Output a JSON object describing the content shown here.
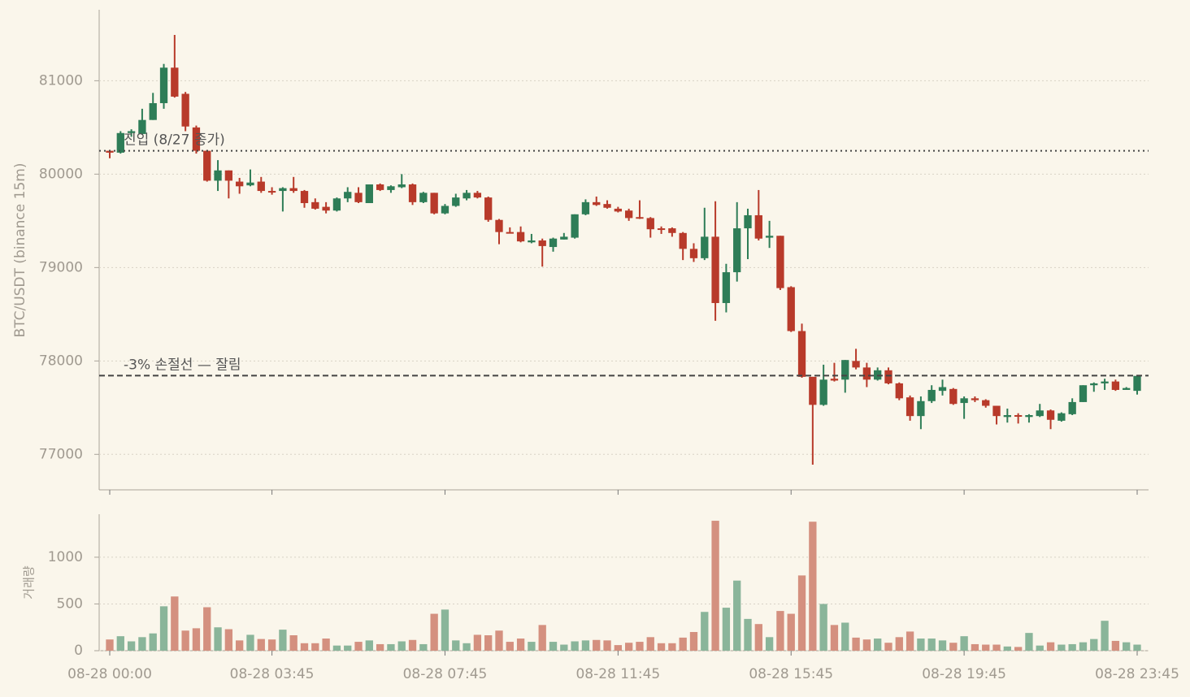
{
  "chart_data": [
    {
      "type": "candlestick",
      "ylabel": "BTC/USDT (binance 15m)",
      "up_color": "#2e7d57",
      "down_color": "#b83a2a",
      "grid": true,
      "ylim": [
        76620,
        81760
      ],
      "yticks": [
        77000,
        78000,
        79000,
        80000,
        81000
      ],
      "open": [
        80250,
        80230,
        80440,
        80430,
        80580,
        80760,
        81140,
        80860,
        80500,
        80250,
        79930,
        80040,
        79920,
        79880,
        79920,
        79820,
        79820,
        79850,
        79820,
        79700,
        79650,
        79610,
        79740,
        79800,
        79690,
        79890,
        79830,
        79860,
        79890,
        79700,
        79800,
        79580,
        79660,
        79740,
        79800,
        79750,
        79510,
        79380,
        79380,
        79270,
        79290,
        79220,
        79300,
        79320,
        79570,
        79700,
        79680,
        79630,
        79610,
        79540,
        79530,
        79420,
        79420,
        79370,
        79200,
        79100,
        79330,
        78620,
        78950,
        79420,
        79560,
        79320,
        79340,
        78790,
        78320,
        77830,
        77530,
        77810,
        77800,
        78000,
        77930,
        77800,
        77900,
        77760,
        77610,
        77410,
        77570,
        77680,
        77700,
        77550,
        77600,
        77580,
        77520,
        77400,
        77420,
        77400,
        77410,
        77470,
        77360,
        77430,
        77560,
        77740,
        77760,
        77780,
        77690,
        77680
      ],
      "high": [
        80260,
        80460,
        80480,
        80700,
        80870,
        81180,
        81490,
        80880,
        80520,
        80260,
        80150,
        80040,
        79960,
        80050,
        79970,
        79860,
        79860,
        79970,
        79830,
        79740,
        79700,
        79750,
        79860,
        79860,
        79890,
        79900,
        79880,
        80000,
        79900,
        79810,
        79800,
        79680,
        79790,
        79830,
        79820,
        79760,
        79520,
        79430,
        79440,
        79360,
        79310,
        79320,
        79370,
        79570,
        79730,
        79760,
        79720,
        79650,
        79630,
        79720,
        79540,
        79440,
        79430,
        79380,
        79260,
        79640,
        79710,
        79040,
        79700,
        79630,
        79830,
        79500,
        79340,
        78800,
        78400,
        77830,
        77960,
        77980,
        78010,
        78130,
        77980,
        77930,
        77930,
        77770,
        77630,
        77620,
        77740,
        77800,
        77710,
        77620,
        77620,
        77590,
        77520,
        77490,
        77440,
        77430,
        77540,
        77480,
        77450,
        77600,
        77740,
        77770,
        77810,
        77800,
        77720,
        77850
      ],
      "low": [
        80170,
        80220,
        80400,
        80420,
        80580,
        80700,
        80820,
        80460,
        80220,
        79920,
        79820,
        79740,
        79790,
        79870,
        79800,
        79780,
        79600,
        79800,
        79640,
        79620,
        79580,
        79600,
        79700,
        79690,
        79690,
        79820,
        79800,
        79850,
        79670,
        79690,
        79570,
        79570,
        79650,
        79720,
        79740,
        79490,
        79250,
        79370,
        79270,
        79260,
        79010,
        79170,
        79300,
        79310,
        79560,
        79660,
        79630,
        79590,
        79500,
        79520,
        79320,
        79360,
        79330,
        79080,
        79060,
        79080,
        78430,
        78520,
        78850,
        79090,
        79290,
        79210,
        78760,
        78310,
        77820,
        76890,
        77520,
        77780,
        77660,
        77910,
        77720,
        77790,
        77750,
        77580,
        77360,
        77270,
        77550,
        77630,
        77530,
        77380,
        77560,
        77500,
        77320,
        77340,
        77330,
        77340,
        77400,
        77270,
        77350,
        77420,
        77560,
        77670,
        77690,
        77680,
        77690,
        77640
      ],
      "close": [
        80230,
        80440,
        80460,
        80580,
        80760,
        81140,
        80830,
        80510,
        80250,
        79930,
        80040,
        79930,
        79870,
        79910,
        79820,
        79810,
        79850,
        79820,
        79690,
        79630,
        79610,
        79740,
        79810,
        79700,
        79890,
        79830,
        79870,
        79890,
        79700,
        79800,
        79580,
        79660,
        79750,
        79800,
        79750,
        79510,
        79380,
        79370,
        79280,
        79290,
        79230,
        79310,
        79330,
        79570,
        79700,
        79670,
        79640,
        79600,
        79530,
        79530,
        79410,
        79410,
        79370,
        79200,
        79100,
        79330,
        78620,
        78950,
        79420,
        79560,
        79310,
        79340,
        78780,
        78320,
        77830,
        77530,
        77800,
        77790,
        78010,
        77930,
        77800,
        77900,
        77760,
        77600,
        77410,
        77570,
        77690,
        77720,
        77540,
        77600,
        77580,
        77520,
        77410,
        77420,
        77410,
        77420,
        77470,
        77370,
        77440,
        77560,
        77740,
        77760,
        77780,
        77690,
        77710,
        77840
      ],
      "hlines": [
        {
          "value": 80250,
          "label": "진입 (8/27 종가)",
          "style": "dotted"
        },
        {
          "value": 77843,
          "label": "-3% 손절선 — 잘림",
          "style": "dashed"
        }
      ]
    },
    {
      "type": "bar",
      "ylabel": "거래량",
      "up_color": "#8ab59a",
      "down_color": "#d4907f",
      "grid": true,
      "ylim": [
        0,
        1460
      ],
      "yticks": [
        0,
        500,
        1000
      ],
      "categories": [
        "08-28 00:00",
        null,
        null,
        null,
        null,
        null,
        null,
        null,
        null,
        null,
        null,
        null,
        null,
        null,
        null,
        "08-28 03:45",
        null,
        null,
        null,
        null,
        null,
        null,
        null,
        null,
        null,
        null,
        null,
        null,
        null,
        null,
        null,
        "08-28 07:45",
        null,
        null,
        null,
        null,
        null,
        null,
        null,
        null,
        null,
        null,
        null,
        null,
        null,
        null,
        null,
        "08-28 11:45",
        null,
        null,
        null,
        null,
        null,
        null,
        null,
        null,
        null,
        null,
        null,
        null,
        null,
        null,
        null,
        "08-28 15:45",
        null,
        null,
        null,
        null,
        null,
        null,
        null,
        null,
        null,
        null,
        null,
        null,
        null,
        null,
        null,
        "08-28 19:45",
        null,
        null,
        null,
        null,
        null,
        null,
        null,
        null,
        null,
        null,
        null,
        null,
        null,
        null,
        null,
        "08-28 23:45"
      ],
      "values": [
        120,
        155,
        100,
        145,
        185,
        475,
        580,
        215,
        240,
        465,
        250,
        230,
        110,
        170,
        125,
        120,
        225,
        165,
        80,
        80,
        130,
        55,
        55,
        95,
        110,
        70,
        70,
        100,
        115,
        70,
        395,
        440,
        110,
        80,
        170,
        165,
        215,
        95,
        130,
        95,
        275,
        95,
        65,
        100,
        110,
        115,
        110,
        60,
        85,
        95,
        145,
        80,
        80,
        140,
        200,
        415,
        1390,
        460,
        750,
        340,
        285,
        145,
        425,
        395,
        805,
        1380,
        500,
        275,
        300,
        140,
        120,
        130,
        85,
        145,
        205,
        130,
        130,
        110,
        85,
        155,
        70,
        65,
        65,
        45,
        40,
        190,
        55,
        90,
        65,
        70,
        90,
        125,
        320,
        105,
        90,
        65
      ]
    }
  ]
}
